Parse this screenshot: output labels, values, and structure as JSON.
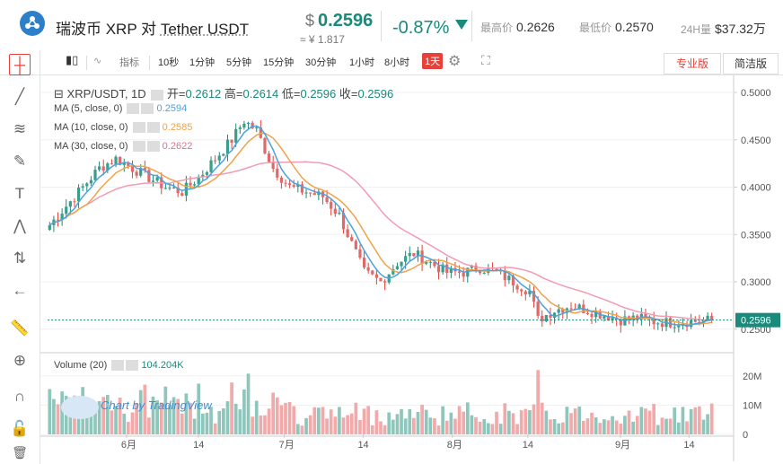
{
  "header": {
    "pair_base": "瑞波币 XRP",
    "pair_sep": "对",
    "pair_quote": "Tether USDT",
    "price_symbol": "$",
    "price": "0.2596",
    "cny_price": "≈ ¥ 1.817",
    "change": "-0.87%",
    "high_label": "最高价",
    "high": "0.2626",
    "low_label": "最低价",
    "low": "0.2570",
    "vol_label": "24H量",
    "vol": "$37.32万"
  },
  "toolbar": {
    "indicators_label": "指标",
    "intervals": [
      "10秒",
      "1分钟",
      "5分钟",
      "15分钟",
      "30分钟",
      "1小时",
      "8小时",
      "1天"
    ],
    "active_interval": "1天",
    "pro_label": "专业版",
    "simple_label": "简洁版"
  },
  "left_tools": [
    "crosshair-icon",
    "trendline-icon",
    "fib-icon",
    "brush-icon",
    "text-icon",
    "pattern-icon",
    "measure-icon",
    "back-icon",
    "ruler-icon",
    "zoom-icon",
    "magnet-icon",
    "lock-icon",
    "trash-icon"
  ],
  "legend": {
    "symbol": "XRP/USDT, 1D",
    "open_label": "开=",
    "open": "0.2612",
    "high_label": "高=",
    "high": "0.2614",
    "low_label": "低=",
    "low": "0.2596",
    "close_label": "收=",
    "close": "0.2596",
    "ma5_label": "MA (5, close, 0)",
    "ma5": "0.2594",
    "ma10_label": "MA (10, close, 0)",
    "ma10": "0.2585",
    "ma30_label": "MA (30, close, 0)",
    "ma30": "0.2622",
    "volume_label": "Volume (20)",
    "volume": "104.204K"
  },
  "watermark": "Chart by TradingView",
  "colors": {
    "up": "#1a8a7a",
    "down": "#e8413a",
    "up_fill": "#3a9e8c",
    "down_fill": "#e06a6a",
    "vol_up": "#8fc6bb",
    "vol_down": "#f2a9a9",
    "ma5": "#4aa3df",
    "ma10": "#f0a24a",
    "ma30": "#f29bb4"
  },
  "chart_data": {
    "type": "candlestick",
    "x_tick_labels": [
      "6月",
      "14",
      "7月",
      "14",
      "8月",
      "14",
      "9月",
      "14"
    ],
    "price_axis_labels": [
      "0.5000",
      "0.4500",
      "0.4000",
      "0.3500",
      "0.3000",
      "0.2500"
    ],
    "price_range": [
      0.228,
      0.518
    ],
    "volume_axis_labels": [
      "20M",
      "10M",
      "0"
    ],
    "volume_range": [
      0,
      27
    ],
    "last_price_label": "0.2596",
    "grid": true
  }
}
